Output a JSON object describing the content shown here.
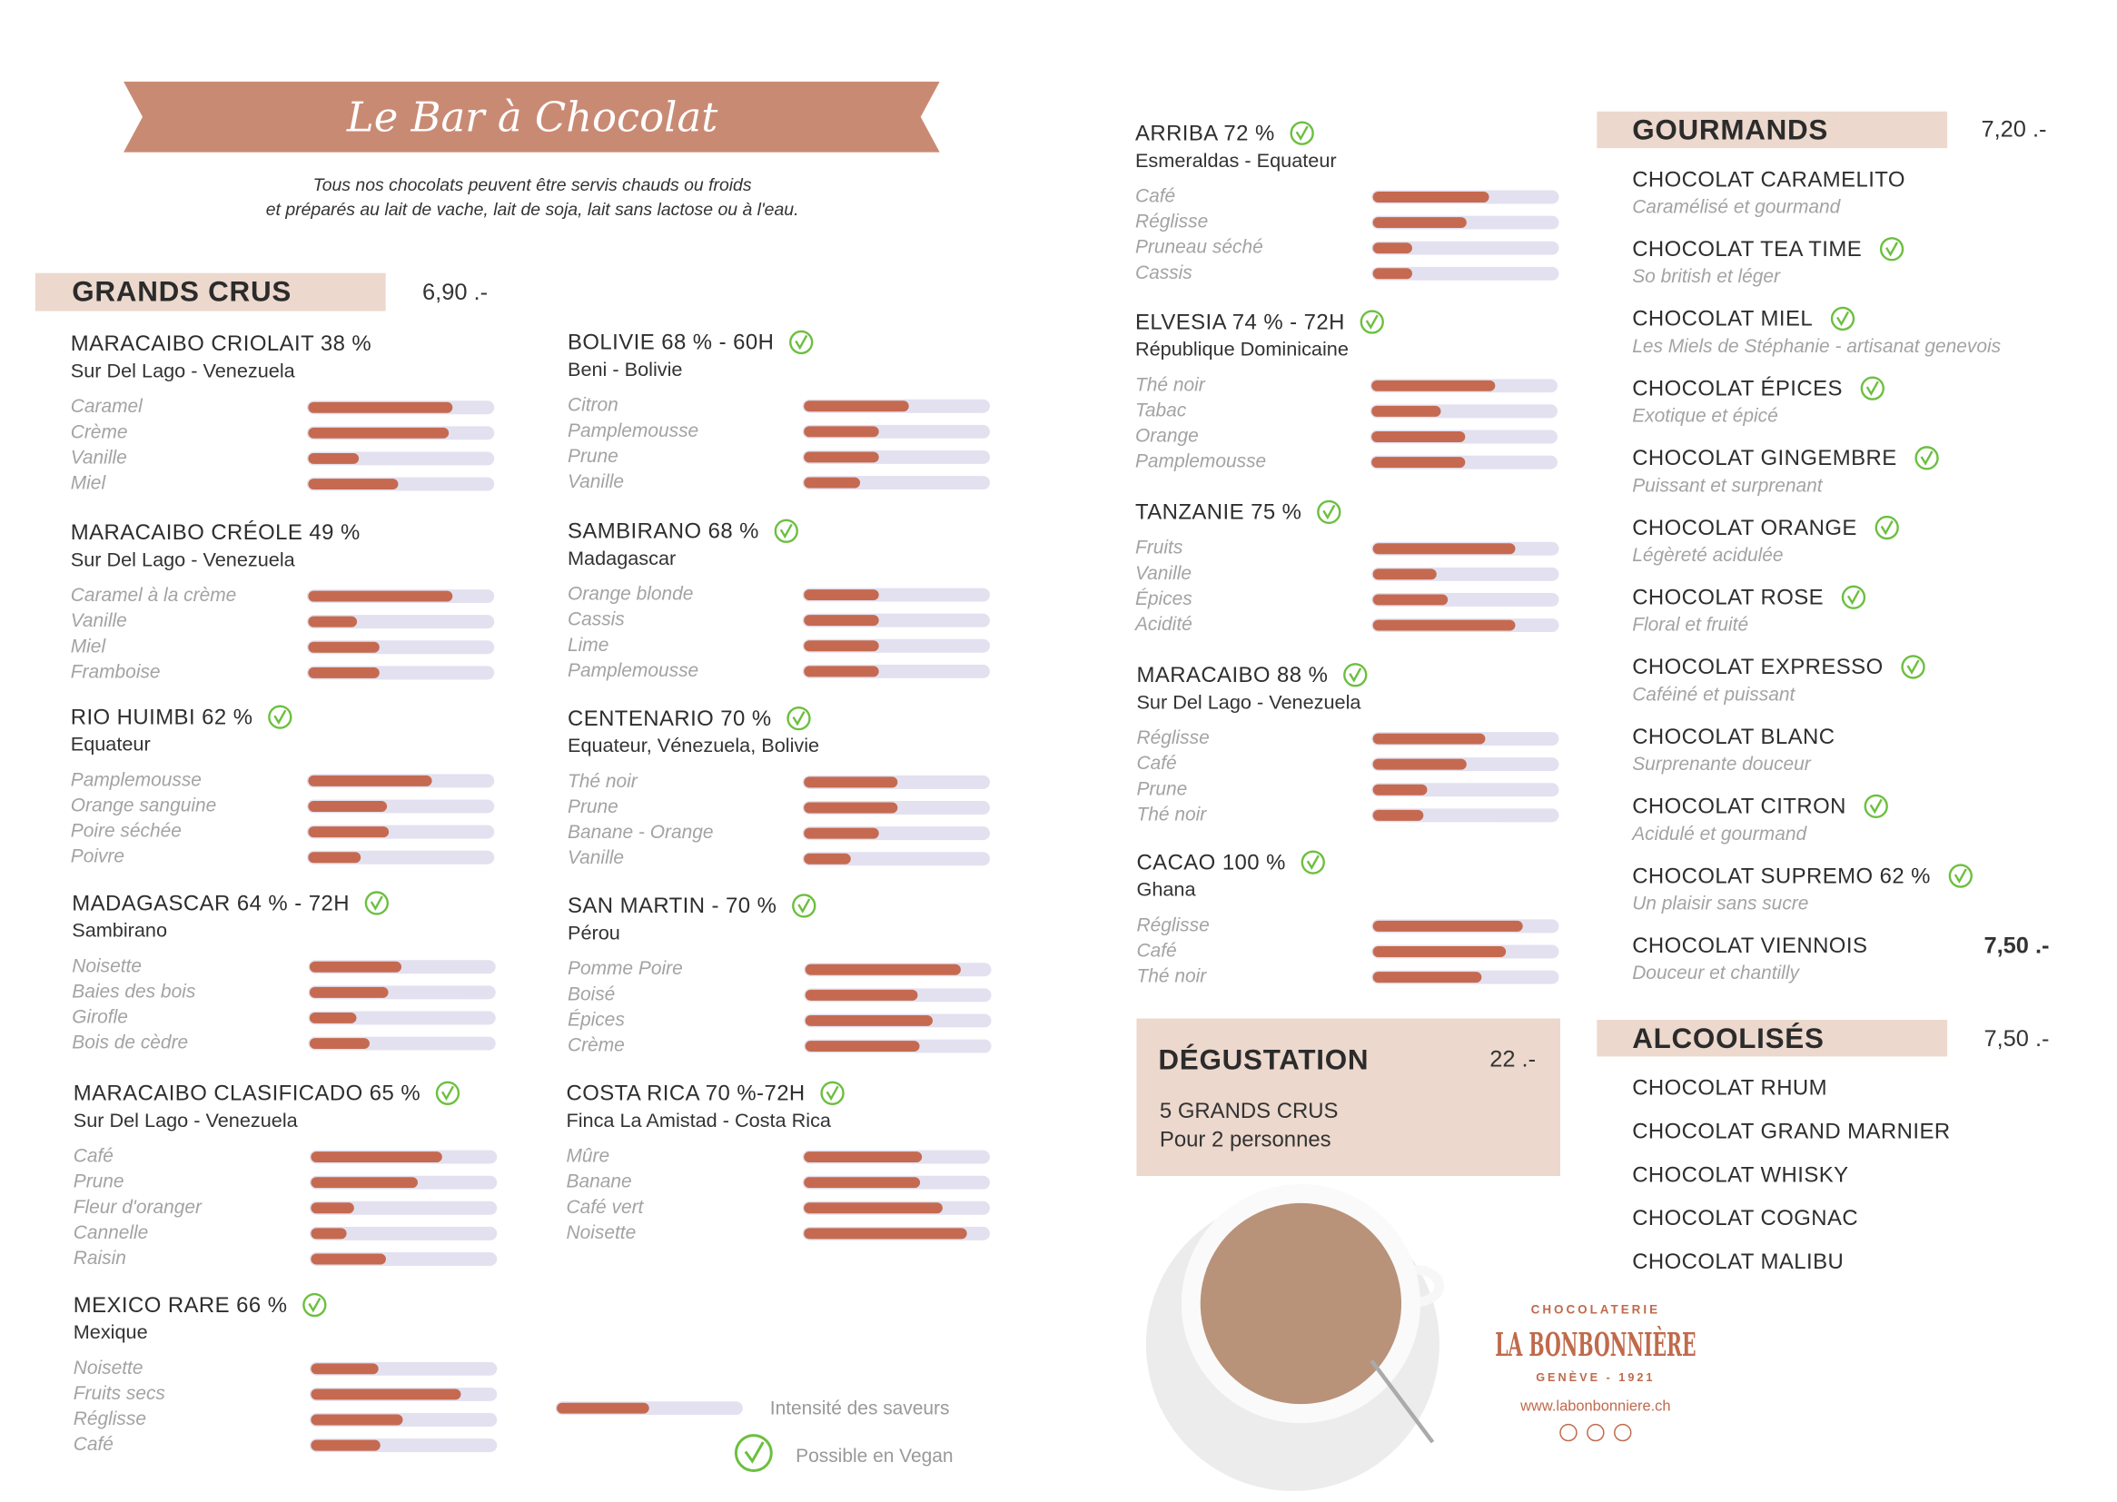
{
  "header": {
    "title": "Le Bar à Chocolat",
    "intro": [
      "Tous nos chocolats peuvent être servis chauds ou froids",
      "et préparés au lait de vache, lait de soja, lait sans lactose ou à l'eau."
    ]
  },
  "grands_crus": {
    "title": "GRANDS CRUS",
    "price": "6,90 .-",
    "items": [
      {
        "name": "MARACAIBO CRIOLAIT 38 %",
        "origin": "Sur Del Lago - Venezuela",
        "vegan": false,
        "flavors": [
          {
            "name": "Caramel",
            "intensity": 0.77
          },
          {
            "name": "Crème",
            "intensity": 0.75
          },
          {
            "name": "Vanille",
            "intensity": 0.27
          },
          {
            "name": "Miel",
            "intensity": 0.48
          }
        ]
      },
      {
        "name": "MARACAIBO CRÉOLE 49 %",
        "origin": "Sur Del Lago - Venezuela",
        "vegan": false,
        "flavors": [
          {
            "name": "Caramel à la crème",
            "intensity": 0.77
          },
          {
            "name": "Vanille",
            "intensity": 0.26
          },
          {
            "name": "Miel",
            "intensity": 0.38
          },
          {
            "name": "Framboise",
            "intensity": 0.38
          }
        ]
      },
      {
        "name": "RIO HUIMBI 62 %",
        "origin": "Equateur",
        "vegan": true,
        "flavors": [
          {
            "name": "Pamplemousse",
            "intensity": 0.66
          },
          {
            "name": "Orange sanguine",
            "intensity": 0.42
          },
          {
            "name": "Poire séchée",
            "intensity": 0.43
          },
          {
            "name": "Poivre",
            "intensity": 0.28
          }
        ]
      },
      {
        "name": "MADAGASCAR 64 % - 72H",
        "origin": "Sambirano",
        "vegan": true,
        "flavors": [
          {
            "name": "Noisette",
            "intensity": 0.49
          },
          {
            "name": "Baies des bois",
            "intensity": 0.42
          },
          {
            "name": "Girofle",
            "intensity": 0.25
          },
          {
            "name": "Bois de cèdre",
            "intensity": 0.32
          }
        ]
      },
      {
        "name": "MARACAIBO CLASIFICADO 65 %",
        "origin": "Sur Del Lago - Venezuela",
        "vegan": true,
        "flavors": [
          {
            "name": "Café",
            "intensity": 0.7
          },
          {
            "name": "Prune",
            "intensity": 0.57
          },
          {
            "name": "Fleur d'oranger",
            "intensity": 0.23
          },
          {
            "name": "Cannelle",
            "intensity": 0.19
          },
          {
            "name": "Raisin",
            "intensity": 0.4
          }
        ]
      },
      {
        "name": "MEXICO RARE 66 %",
        "origin": "Mexique",
        "vegan": true,
        "flavors": [
          {
            "name": "Noisette",
            "intensity": 0.36
          },
          {
            "name": "Fruits secs",
            "intensity": 0.8
          },
          {
            "name": "Réglisse",
            "intensity": 0.49
          },
          {
            "name": "Café",
            "intensity": 0.37
          }
        ]
      },
      {
        "name": "BOLIVIE 68 % - 60H",
        "origin": "Beni - Bolivie",
        "vegan": true,
        "flavors": [
          {
            "name": "Citron",
            "intensity": 0.56
          },
          {
            "name": "Pamplemousse",
            "intensity": 0.4
          },
          {
            "name": "Prune",
            "intensity": 0.4
          },
          {
            "name": "Vanille",
            "intensity": 0.3
          }
        ]
      },
      {
        "name": "SAMBIRANO 68 %",
        "origin": "Madagascar",
        "vegan": true,
        "flavors": [
          {
            "name": "Orange  blonde",
            "intensity": 0.4
          },
          {
            "name": "Cassis",
            "intensity": 0.4
          },
          {
            "name": "Lime",
            "intensity": 0.4
          },
          {
            "name": "Pamplemousse",
            "intensity": 0.4
          }
        ]
      },
      {
        "name": "CENTENARIO 70 %",
        "origin": "Equateur, Vénezuela, Bolivie",
        "vegan": true,
        "flavors": [
          {
            "name": "Thé noir",
            "intensity": 0.5
          },
          {
            "name": "Prune",
            "intensity": 0.5
          },
          {
            "name": "Banane - Orange",
            "intensity": 0.4
          },
          {
            "name": "Vanille",
            "intensity": 0.25
          }
        ]
      },
      {
        "name": "SAN MARTIN - 70 %",
        "origin": "Pérou",
        "vegan": true,
        "flavors": [
          {
            "name": "Pomme Poire",
            "intensity": 0.83
          },
          {
            "name": "Boisé",
            "intensity": 0.6
          },
          {
            "name": "Épices",
            "intensity": 0.68
          },
          {
            "name": "Crème",
            "intensity": 0.61
          }
        ]
      },
      {
        "name": "COSTA RICA 70 %-72H",
        "origin": "Finca La Amistad - Costa Rica",
        "vegan": true,
        "flavors": [
          {
            "name": "Mûre",
            "intensity": 0.63
          },
          {
            "name": "Banane",
            "intensity": 0.62
          },
          {
            "name": "Café vert",
            "intensity": 0.74
          },
          {
            "name": "Noisette",
            "intensity": 0.87
          }
        ]
      },
      {
        "name": "ARRIBA 72 %",
        "origin": "Esmeraldas - Equateur",
        "vegan": true,
        "flavors": [
          {
            "name": "Café",
            "intensity": 0.62
          },
          {
            "name": "Réglisse",
            "intensity": 0.5
          },
          {
            "name": "Pruneau séché",
            "intensity": 0.21
          },
          {
            "name": "Cassis",
            "intensity": 0.21
          }
        ]
      },
      {
        "name": "ELVESIA 74 % - 72H",
        "origin": "République Dominicaine",
        "vegan": true,
        "flavors": [
          {
            "name": "Thé noir",
            "intensity": 0.66
          },
          {
            "name": "Tabac",
            "intensity": 0.37
          },
          {
            "name": "Orange",
            "intensity": 0.5
          },
          {
            "name": "Pamplemousse",
            "intensity": 0.5
          }
        ]
      },
      {
        "name": "TANZANIE 75 %",
        "vegan": true,
        "flavors": [
          {
            "name": "Fruits",
            "intensity": 0.76
          },
          {
            "name": "Vanille",
            "intensity": 0.34
          },
          {
            "name": "Épices",
            "intensity": 0.4
          },
          {
            "name": "Acidité",
            "intensity": 0.76
          }
        ]
      },
      {
        "name": "MARACAIBO 88 %",
        "origin": "Sur Del Lago - Venezuela",
        "vegan": true,
        "flavors": [
          {
            "name": "Réglisse",
            "intensity": 0.6
          },
          {
            "name": "Café",
            "intensity": 0.5
          },
          {
            "name": "Prune",
            "intensity": 0.29
          },
          {
            "name": "Thé noir",
            "intensity": 0.27
          }
        ]
      },
      {
        "name": "CACAO 100 %",
        "origin": "Ghana",
        "vegan": true,
        "flavors": [
          {
            "name": "Réglisse",
            "intensity": 0.8
          },
          {
            "name": "Café",
            "intensity": 0.71
          },
          {
            "name": "Thé noir",
            "intensity": 0.58
          }
        ]
      }
    ]
  },
  "degustation": {
    "title": "DÉGUSTATION",
    "price": "22 .-",
    "lines": [
      "5 GRANDS CRUS",
      "Pour 2 personnes"
    ]
  },
  "legend": {
    "intensity": "Intensité des saveurs",
    "vegan": "Possible en Vegan"
  },
  "gourmands": {
    "title": "GOURMANDS",
    "price": "7,20 .-",
    "items": [
      {
        "name": "CHOCOLAT CARAMELITO",
        "description": "Caramélisé et gourmand",
        "vegan": false
      },
      {
        "name": "CHOCOLAT TEA TIME",
        "description": "So british et léger",
        "vegan": true
      },
      {
        "name": "CHOCOLAT MIEL",
        "description": "Les Miels de Stéphanie - artisanat genevois",
        "vegan": true
      },
      {
        "name": "CHOCOLAT ÉPICES",
        "description": "Exotique et épicé",
        "vegan": true
      },
      {
        "name": "CHOCOLAT GINGEMBRE",
        "description": "Puissant et surprenant",
        "vegan": true
      },
      {
        "name": "CHOCOLAT ORANGE",
        "description": "Légèreté acidulée",
        "vegan": true
      },
      {
        "name": "CHOCOLAT ROSE",
        "description": "Floral et fruité",
        "vegan": true
      },
      {
        "name": "CHOCOLAT EXPRESSO",
        "description": "Caféiné et puissant",
        "vegan": true
      },
      {
        "name": "CHOCOLAT BLANC",
        "description": "Surprenante douceur",
        "vegan": false
      },
      {
        "name": "CHOCOLAT CITRON",
        "description": "Acidulé et gourmand",
        "vegan": true
      },
      {
        "name": "CHOCOLAT SUPREMO 62 %",
        "description": "Un plaisir sans sucre",
        "vegan": true
      },
      {
        "name": "CHOCOLAT VIENNOIS",
        "description": "Douceur et chantilly",
        "vegan": false,
        "price": "7,50 .-"
      }
    ]
  },
  "alcoolises": {
    "title": "ALCOOLISÉS",
    "price": "7,50 .-",
    "items": [
      "CHOCOLAT RHUM",
      "CHOCOLAT GRAND MARNIER",
      "CHOCOLAT WHISKY",
      "CHOCOLAT COGNAC",
      "CHOCOLAT MALIBU"
    ]
  },
  "logo": {
    "top": "CHOCOLATERIE",
    "name": "LA BONBONNIÈRE",
    "bottom": "GENÈVE - 1921",
    "url": "www.labonbonniere.ch"
  }
}
